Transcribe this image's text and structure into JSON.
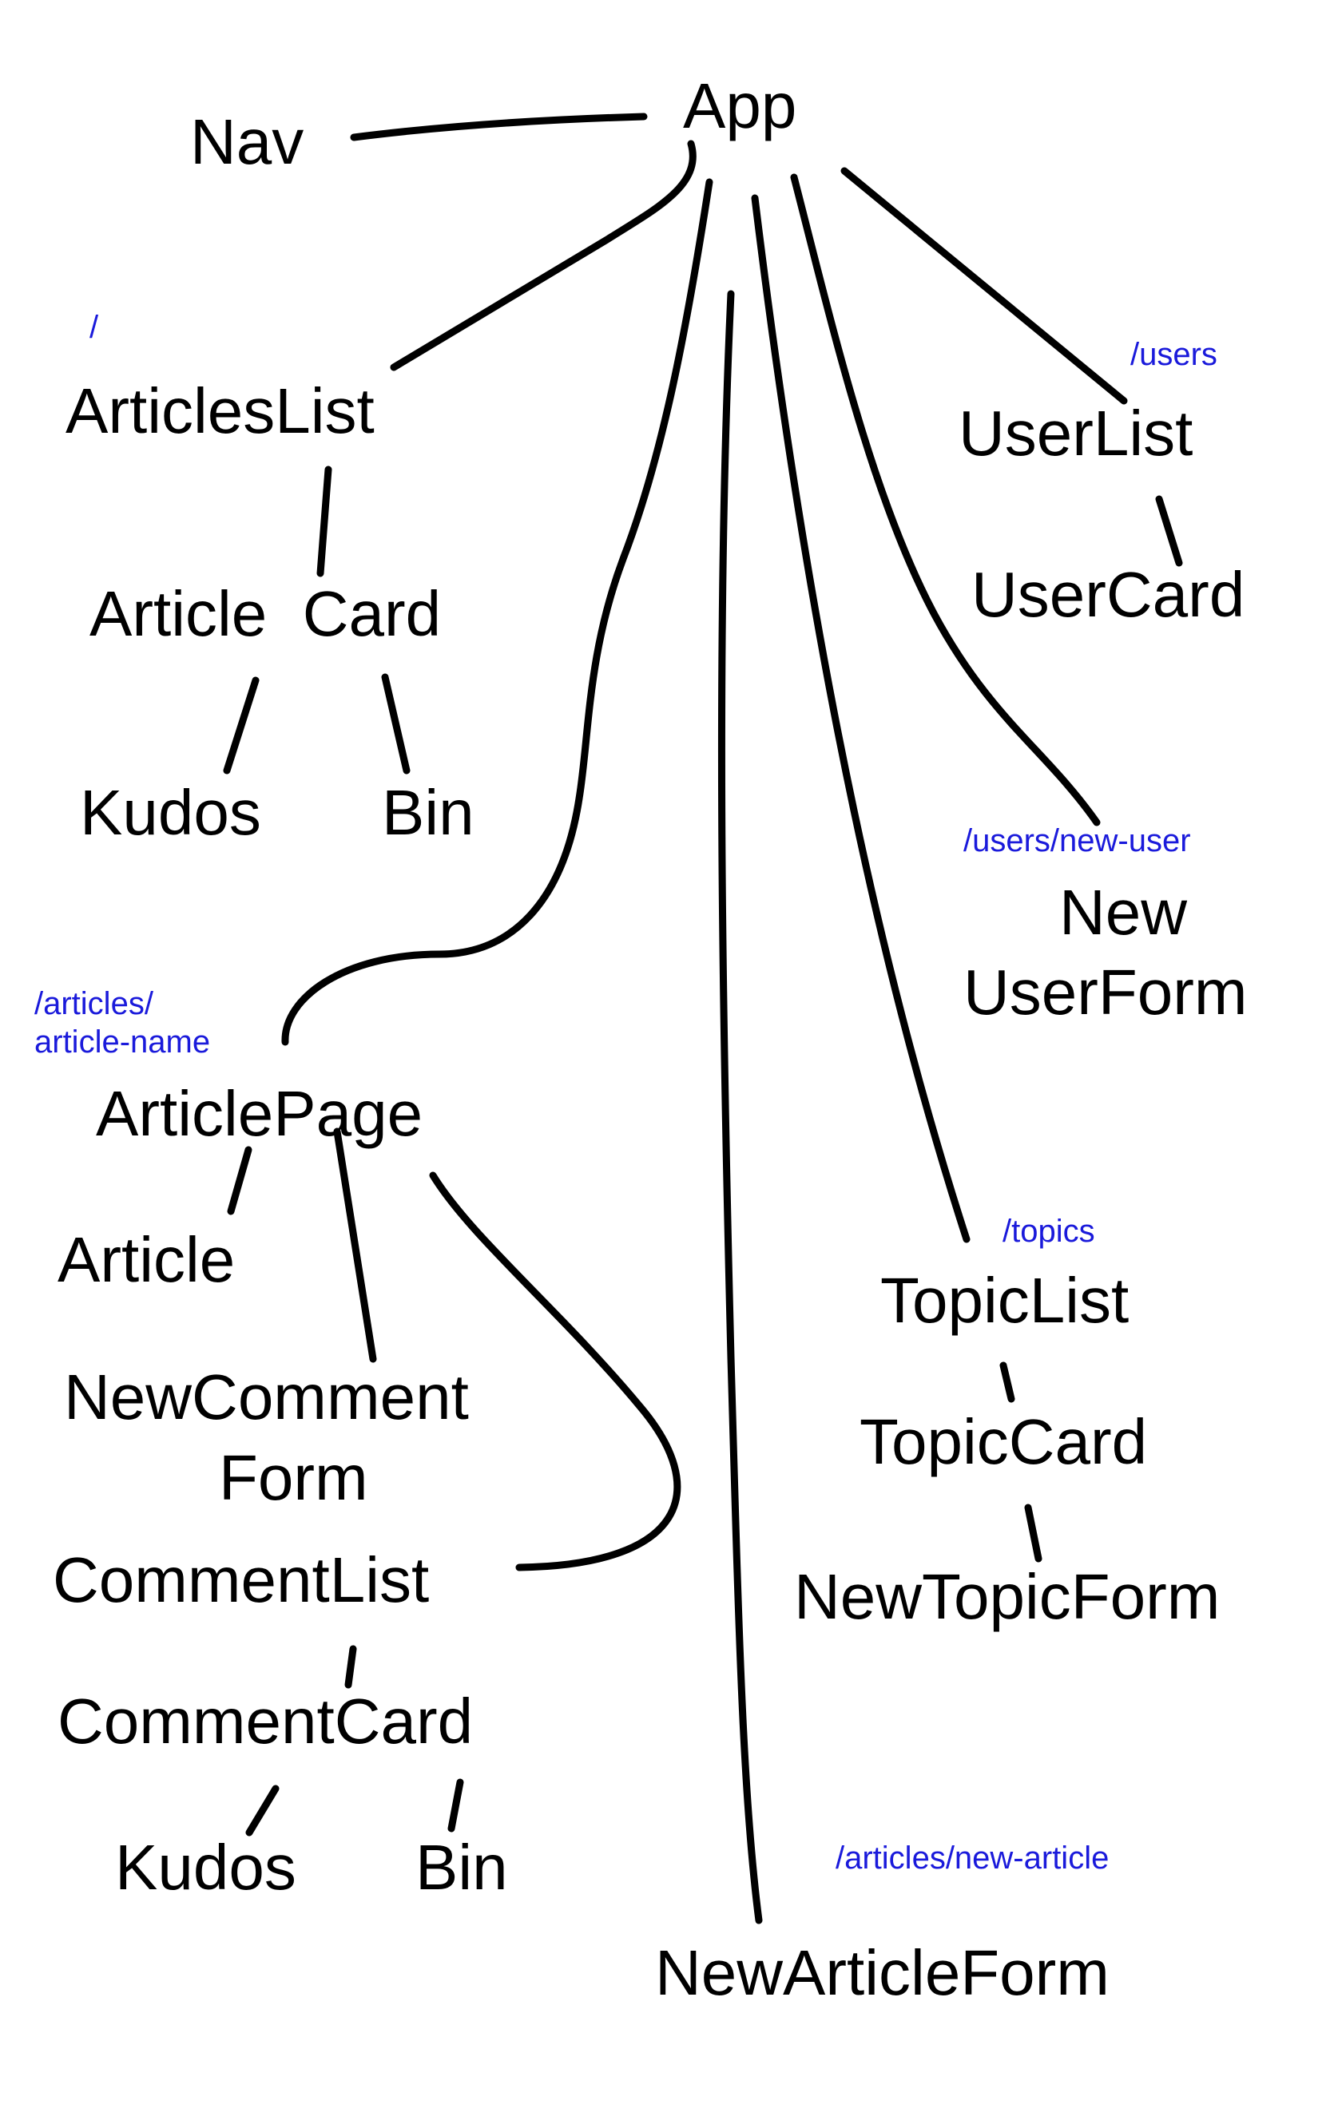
{
  "colors": {
    "background": "#ffffff",
    "node_text": "#000000",
    "edge": "#000000",
    "route_text": "#1a1adb"
  },
  "nodes": {
    "app": "App",
    "nav": "Nav",
    "articles_list": "ArticlesList",
    "article_card": "Article  Card",
    "kudos_1": "Kudos",
    "bin_1": "Bin",
    "article_page": "ArticlePage",
    "article": "Article",
    "new_comment_form_line1": "NewComment",
    "new_comment_form_line2": "Form",
    "comment_list": "CommentList",
    "comment_card": "CommentCard",
    "kudos_2": "Kudos",
    "bin_2": "Bin",
    "new_article_form": "NewArticleForm",
    "user_list": "UserList",
    "user_card": "UserCard",
    "new_user_form_line1": "New",
    "new_user_form_line2": "UserForm",
    "topic_list": "TopicList",
    "topic_card": "TopicCard",
    "new_topic_form": "NewTopicForm"
  },
  "routes": {
    "root": "/",
    "users": "/users",
    "users_new_user": "/users/new-user",
    "article_name_line1": "/articles/",
    "article_name_line2": "article-name",
    "topics": "/topics",
    "new_article": "/articles/new-article"
  }
}
